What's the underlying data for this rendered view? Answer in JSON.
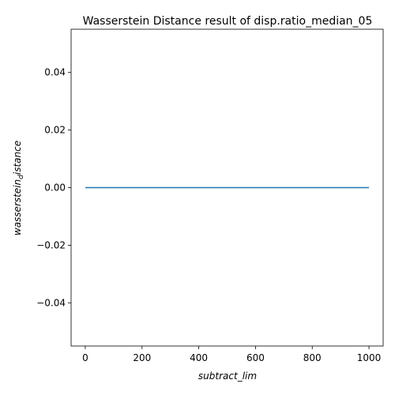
{
  "chart_data": {
    "type": "line",
    "title": "Wasserstein Distance result of disp.ratio_median_05",
    "xlabel": "subtract_lim",
    "ylabel": {
      "main": "wasserstein",
      "sub": "d",
      "rest": "istance"
    },
    "xlim": [
      -50,
      1050
    ],
    "ylim": [
      -0.055,
      0.055
    ],
    "x_ticks": [
      0,
      200,
      400,
      600,
      800,
      1000
    ],
    "x_tick_labels": [
      "0",
      "200",
      "400",
      "600",
      "800",
      "1000"
    ],
    "y_ticks": [
      -0.04,
      -0.02,
      0.0,
      0.02,
      0.04
    ],
    "y_tick_labels": [
      "−0.04",
      "−0.02",
      "0.00",
      "0.02",
      "0.04"
    ],
    "grid": false,
    "series": [
      {
        "color": "#1f77b4",
        "x": [
          0,
          1000
        ],
        "y": [
          0.0,
          0.0
        ]
      }
    ]
  }
}
